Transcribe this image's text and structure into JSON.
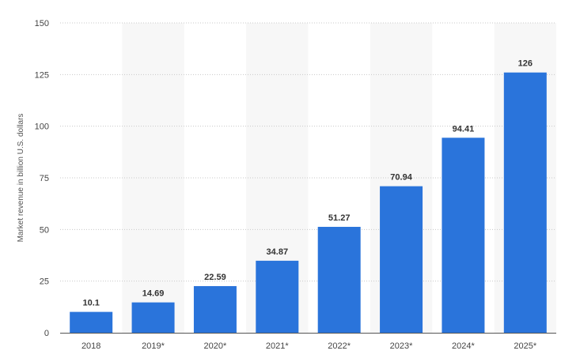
{
  "chart_data": {
    "type": "bar",
    "title": "",
    "xlabel": "",
    "ylabel": "Market revenue in billion U.S. dollars",
    "categories": [
      "2018",
      "2019*",
      "2020*",
      "2021*",
      "2022*",
      "2023*",
      "2024*",
      "2025*"
    ],
    "values": [
      10.1,
      14.69,
      22.59,
      34.87,
      51.27,
      70.94,
      94.41,
      126
    ],
    "value_labels": [
      "10.1",
      "14.69",
      "22.59",
      "34.87",
      "51.27",
      "70.94",
      "94.41",
      "126"
    ],
    "ylim": [
      0,
      150
    ],
    "yticks": [
      0,
      25,
      50,
      75,
      100,
      125,
      150
    ],
    "ytick_labels": [
      "0",
      "25",
      "50",
      "75",
      "100",
      "125",
      "150"
    ],
    "grid": true,
    "bar_color": "#2a74db",
    "alternating_band_color": "#f7f7f7"
  }
}
